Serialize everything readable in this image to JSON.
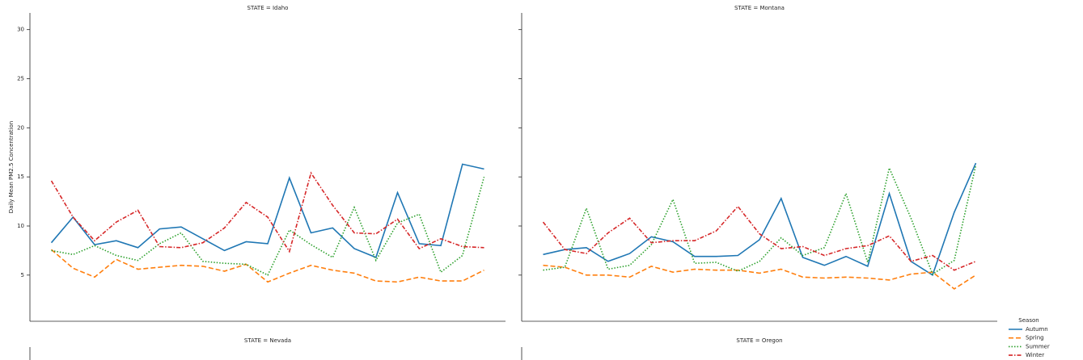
{
  "chart_data": [
    {
      "type": "line",
      "title": "STATE = Idaho",
      "ylabel": "Daily Mean PM2.5 Concentration",
      "legend_title": "Season",
      "categories": [
        null,
        null,
        null,
        null,
        null,
        null,
        null,
        null,
        null,
        null,
        null,
        null,
        null,
        null,
        null,
        null,
        null,
        null,
        null,
        null,
        null
      ],
      "ylim": [
        0.3,
        31.7
      ],
      "yticks": [
        5,
        10,
        15,
        20,
        25,
        30
      ],
      "series": [
        {
          "name": "Autumn",
          "color": "#1f77b4",
          "linestyle": "solid",
          "values": [
            8.3,
            10.9,
            8.1,
            8.5,
            7.8,
            9.7,
            9.9,
            8.7,
            7.5,
            8.4,
            8.2,
            14.9,
            9.3,
            9.8,
            7.7,
            6.8,
            13.4,
            8.2,
            8.0,
            16.3,
            15.8
          ]
        },
        {
          "name": "Spring",
          "color": "#ff7f0e",
          "linestyle": "dashed",
          "values": [
            7.6,
            5.7,
            4.8,
            6.6,
            5.6,
            5.8,
            6.0,
            5.9,
            5.4,
            6.1,
            4.3,
            5.2,
            6.0,
            5.5,
            5.2,
            4.4,
            4.3,
            4.8,
            4.4,
            4.4,
            5.5
          ]
        },
        {
          "name": "Summer",
          "color": "#2ca02c",
          "linestyle": "dotted",
          "values": [
            7.5,
            7.1,
            8.0,
            7.0,
            6.5,
            8.2,
            9.3,
            6.4,
            6.2,
            6.1,
            5.0,
            9.6,
            8.1,
            6.8,
            11.9,
            6.5,
            10.3,
            11.2,
            5.3,
            7.0,
            15.0
          ]
        },
        {
          "name": "Winter",
          "color": "#d62728",
          "linestyle": "dashdot",
          "values": [
            14.6,
            10.9,
            8.5,
            10.4,
            11.6,
            7.9,
            7.8,
            8.3,
            9.8,
            12.4,
            10.9,
            7.4,
            15.4,
            12.1,
            9.3,
            9.2,
            10.7,
            7.7,
            8.7,
            7.9,
            7.8
          ]
        }
      ]
    },
    {
      "type": "line",
      "title": "STATE = Montana",
      "categories": [
        null,
        null,
        null,
        null,
        null,
        null,
        null,
        null,
        null,
        null,
        null,
        null,
        null,
        null,
        null,
        null,
        null,
        null,
        null,
        null,
        null
      ],
      "series": [
        {
          "name": "Autumn",
          "color": "#1f77b4",
          "linestyle": "solid",
          "values": [
            7.1,
            7.6,
            7.8,
            6.4,
            7.2,
            8.9,
            8.4,
            6.9,
            6.9,
            7.0,
            8.6,
            12.8,
            6.8,
            6.0,
            6.9,
            5.9,
            13.3,
            6.4,
            5.0,
            11.4,
            16.4
          ]
        },
        {
          "name": "Spring",
          "color": "#ff7f0e",
          "linestyle": "dashed",
          "values": [
            6.0,
            5.8,
            5.0,
            5.0,
            4.8,
            5.9,
            5.3,
            5.6,
            5.5,
            5.5,
            5.2,
            5.6,
            4.8,
            4.7,
            4.8,
            4.7,
            4.5,
            5.1,
            5.3,
            3.6,
            5.0
          ]
        },
        {
          "name": "Summer",
          "color": "#2ca02c",
          "linestyle": "dotted",
          "values": [
            5.5,
            5.8,
            11.8,
            5.6,
            6.0,
            8.1,
            12.7,
            6.2,
            6.3,
            5.4,
            6.4,
            8.8,
            7.0,
            7.8,
            13.3,
            6.3,
            15.9,
            10.8,
            5.1,
            6.5,
            16.2
          ]
        },
        {
          "name": "Winter",
          "color": "#d62728",
          "linestyle": "dashdot",
          "values": [
            10.4,
            7.6,
            7.2,
            9.3,
            10.8,
            8.3,
            8.5,
            8.5,
            9.5,
            12.0,
            9.2,
            7.7,
            7.9,
            7.0,
            7.7,
            8.0,
            9.0,
            6.4,
            7.0,
            5.5,
            6.4
          ]
        }
      ]
    },
    {
      "type": "line",
      "title": "STATE = Nevada"
    },
    {
      "type": "line",
      "title": "STATE = Oregon"
    }
  ]
}
